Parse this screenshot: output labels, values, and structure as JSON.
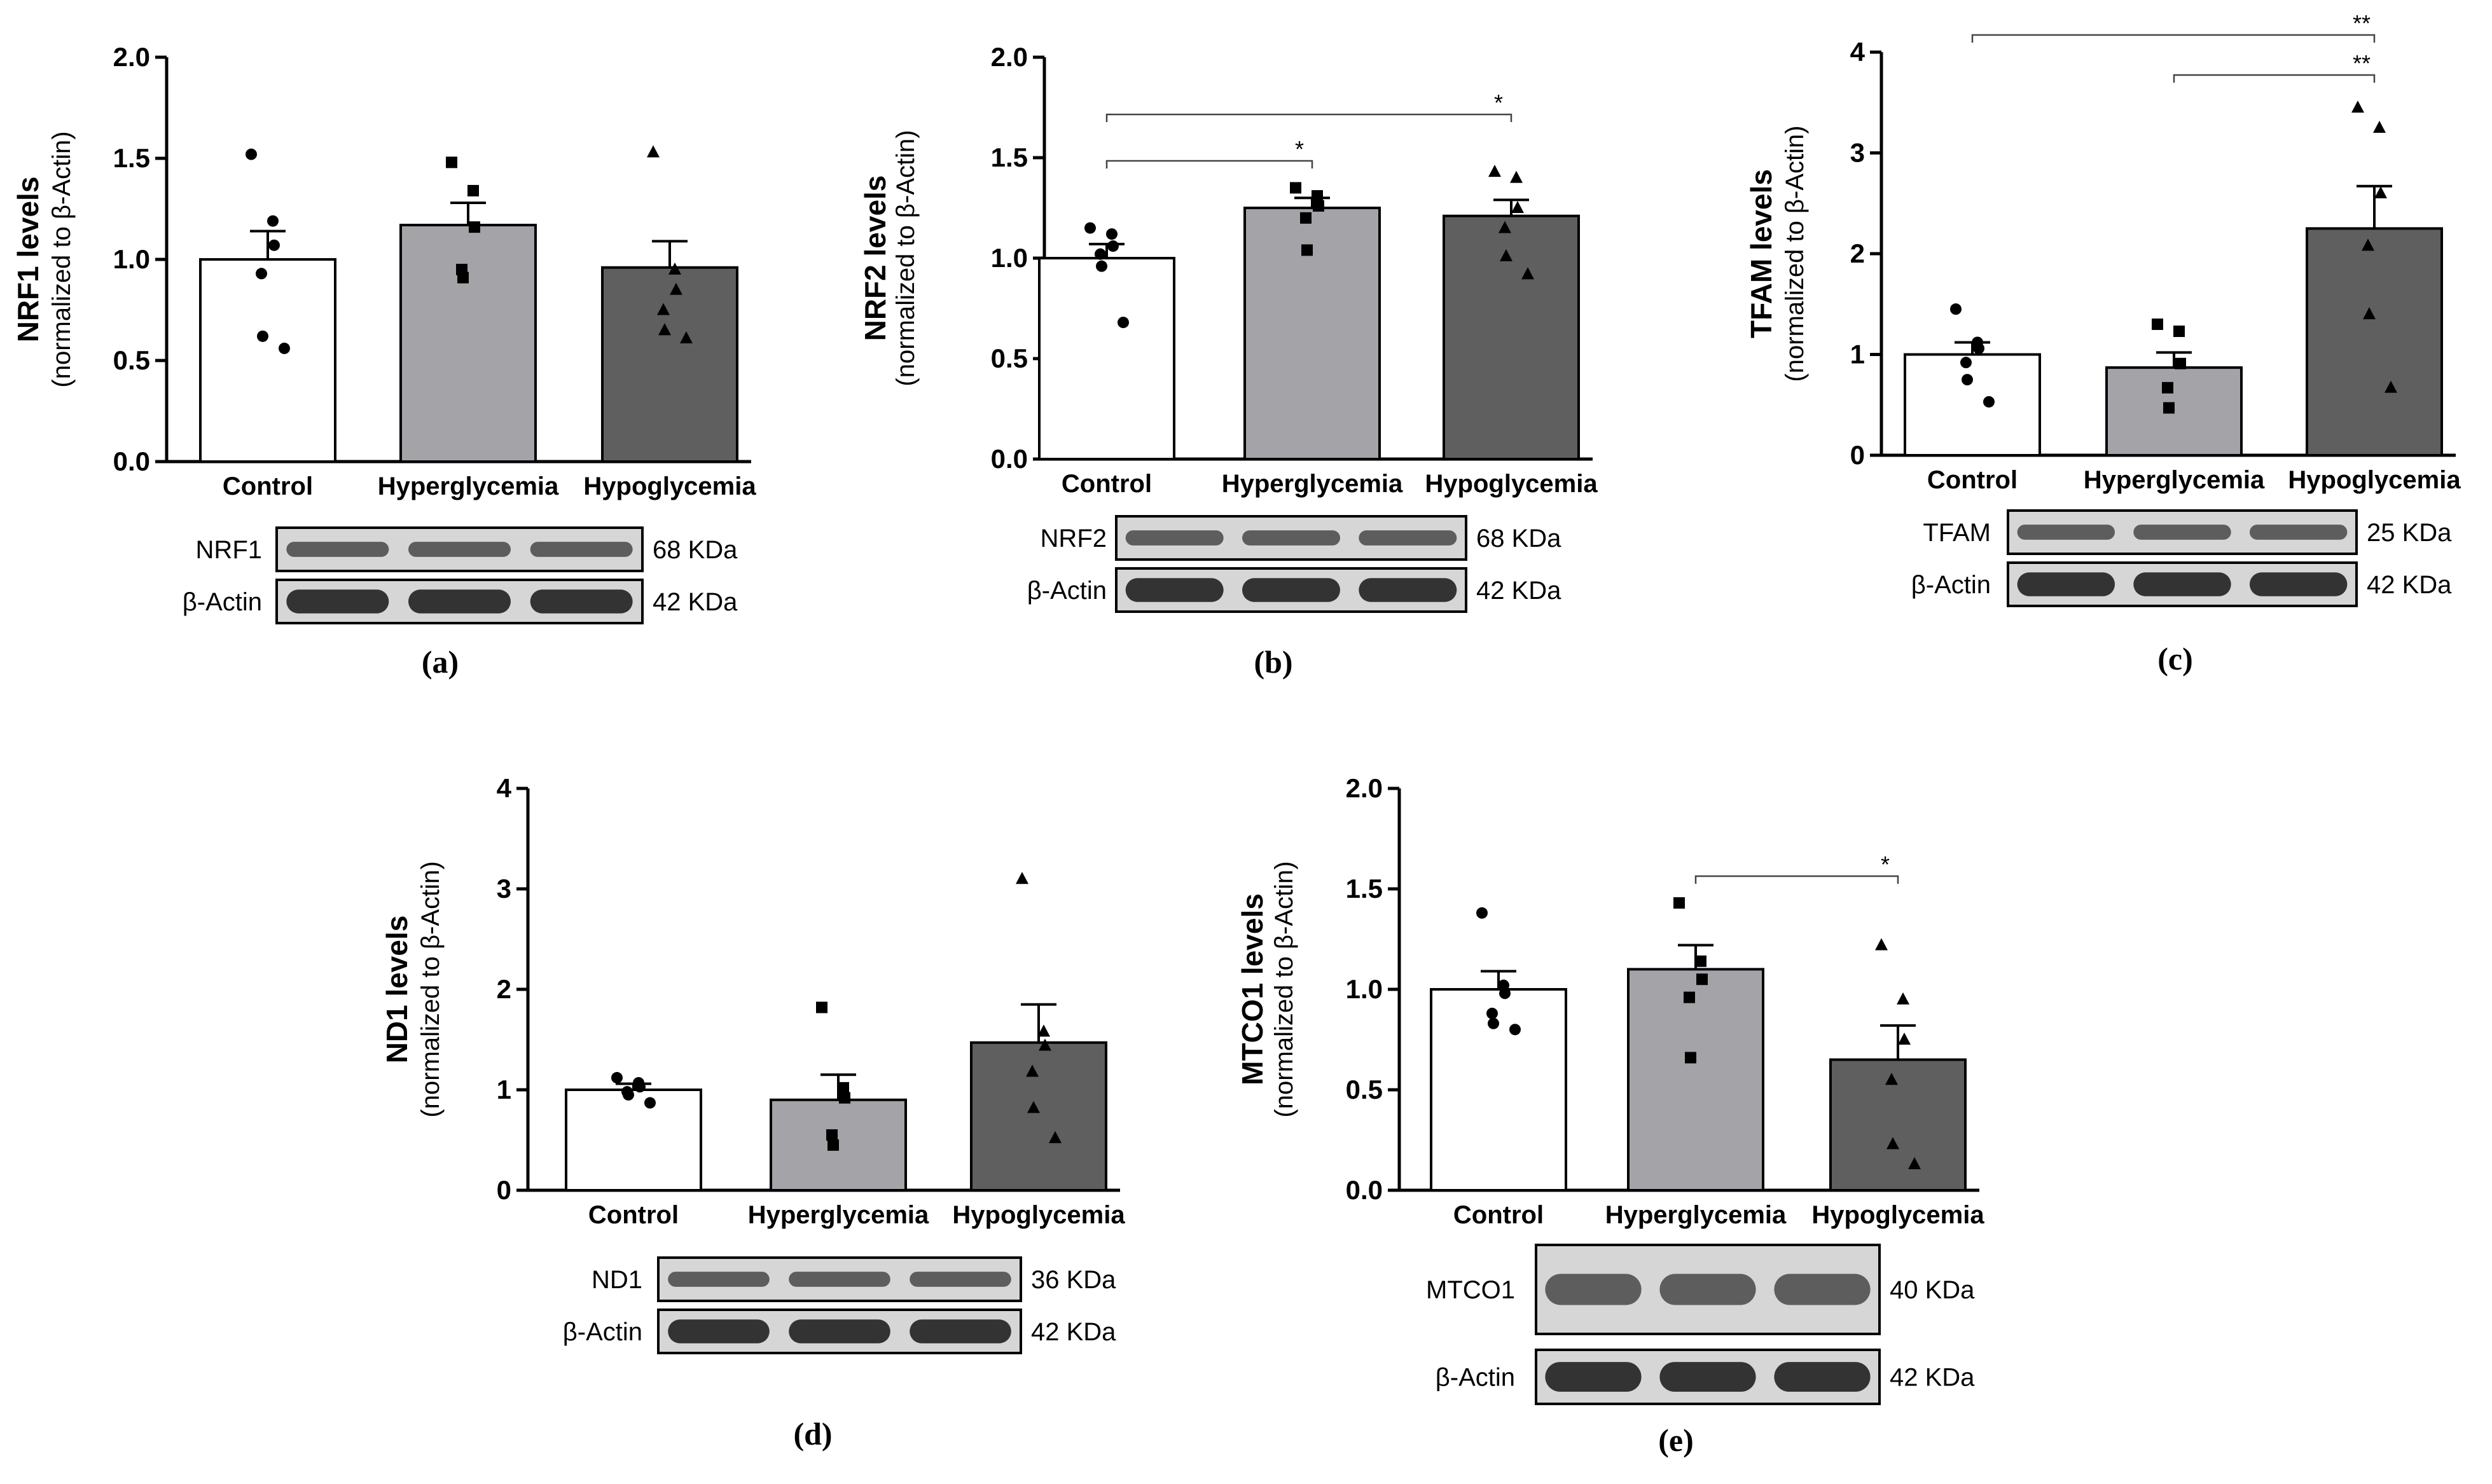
{
  "colors": {
    "control": "#ffffff",
    "hyperglycemia": "#a3a3a8",
    "hypoglycemia": "#5f5f5f",
    "axis": "#000000",
    "blot_bg": "#d6d6d6",
    "band": "#2a2a2a"
  },
  "panels": [
    {
      "id": "a",
      "caption": "(a)",
      "ylabel": "NRF1 levels",
      "ysub": "(normalized to β-Actin)",
      "blots": [
        {
          "label": "NRF1",
          "size": "68 KDa"
        },
        {
          "label": "β-Actin",
          "size": "42 KDa"
        }
      ],
      "significance": []
    },
    {
      "id": "b",
      "caption": "(b)",
      "ylabel": "NRF2 levels",
      "ysub": "(normalized to β-Actin)",
      "blots": [
        {
          "label": "NRF2",
          "size": "68 KDa"
        },
        {
          "label": "β-Actin",
          "size": "42 KDa"
        }
      ],
      "significance": [
        {
          "from": 0,
          "to": 1,
          "label": "*"
        },
        {
          "from": 0,
          "to": 2,
          "label": "*"
        }
      ]
    },
    {
      "id": "c",
      "caption": "(c)",
      "ylabel": "TFAM levels",
      "ysub": "(normalized to β-Actin)",
      "blots": [
        {
          "label": "TFAM",
          "size": "25 KDa"
        },
        {
          "label": "β-Actin",
          "size": "42 KDa"
        }
      ],
      "significance": [
        {
          "from": 0,
          "to": 2,
          "label": "**"
        },
        {
          "from": 1,
          "to": 2,
          "label": "**"
        }
      ]
    },
    {
      "id": "d",
      "caption": "(d)",
      "ylabel": "ND1 levels",
      "ysub": "(normalized to β-Actin)",
      "blots": [
        {
          "label": "ND1",
          "size": "36 KDa"
        },
        {
          "label": "β-Actin",
          "size": "42 KDa"
        }
      ],
      "significance": []
    },
    {
      "id": "e",
      "caption": "(e)",
      "ylabel": "MTCO1 levels",
      "ysub": "(normalized to β-Actin)",
      "blots": [
        {
          "label": "MTCO1",
          "size": "40 KDa"
        },
        {
          "label": "β-Actin",
          "size": "42 KDa"
        }
      ],
      "significance": [
        {
          "from": 1,
          "to": 2,
          "label": "*"
        }
      ]
    }
  ],
  "chart_data": [
    {
      "type": "bar",
      "panel": "a",
      "categories": [
        "Control",
        "Hyperglycemia",
        "Hypoglycemia"
      ],
      "values": [
        1.0,
        1.17,
        0.96
      ],
      "sem": [
        0.14,
        0.11,
        0.13
      ],
      "points": [
        [
          1.52,
          1.19,
          1.07,
          0.93,
          0.62,
          0.56
        ],
        [
          1.48,
          1.34,
          1.16,
          0.95,
          0.91
        ],
        [
          1.53,
          0.95,
          0.85,
          0.75,
          0.65,
          0.61
        ]
      ],
      "ylim": [
        0,
        2.0
      ],
      "yticks": [
        "0.0",
        "0.5",
        "1.0",
        "1.5",
        "2.0"
      ],
      "ylabel": "NRF1 levels"
    },
    {
      "type": "bar",
      "panel": "b",
      "categories": [
        "Control",
        "Hyperglycemia",
        "Hypoglycemia"
      ],
      "values": [
        1.0,
        1.25,
        1.21
      ],
      "sem": [
        0.07,
        0.05,
        0.08
      ],
      "points": [
        [
          1.15,
          1.12,
          1.06,
          1.02,
          0.96,
          0.68
        ],
        [
          1.35,
          1.31,
          1.26,
          1.2,
          1.04
        ],
        [
          1.43,
          1.4,
          1.25,
          1.15,
          1.01,
          0.92
        ]
      ],
      "ylim": [
        0,
        2.0
      ],
      "yticks": [
        "0.0",
        "0.5",
        "1.0",
        "1.5",
        "2.0"
      ],
      "ylabel": "NRF2 levels"
    },
    {
      "type": "bar",
      "panel": "c",
      "categories": [
        "Control",
        "Hyperglycemia",
        "Hypoglycemia"
      ],
      "values": [
        1.0,
        0.87,
        2.25
      ],
      "sem": [
        0.12,
        0.15,
        0.42
      ],
      "points": [
        [
          1.45,
          1.12,
          1.06,
          0.92,
          0.75,
          0.53
        ],
        [
          1.3,
          1.23,
          0.91,
          0.67,
          0.47
        ],
        [
          3.45,
          3.25,
          2.6,
          2.08,
          1.4,
          0.67
        ]
      ],
      "ylim": [
        0,
        4
      ],
      "yticks": [
        "0",
        "1",
        "2",
        "3",
        "4"
      ],
      "ylabel": "TFAM levels"
    },
    {
      "type": "bar",
      "panel": "d",
      "categories": [
        "Control",
        "Hyperglycemia",
        "Hypoglycemia"
      ],
      "values": [
        1.0,
        0.9,
        1.47
      ],
      "sem": [
        0.06,
        0.25,
        0.38
      ],
      "points": [
        [
          1.12,
          1.07,
          1.03,
          0.98,
          0.95,
          0.87
        ],
        [
          1.82,
          1.02,
          0.92,
          0.55,
          0.45
        ],
        [
          3.1,
          1.58,
          1.44,
          1.18,
          0.82,
          0.52
        ]
      ],
      "ylim": [
        0,
        4
      ],
      "yticks": [
        "0",
        "1",
        "2",
        "3",
        "4"
      ],
      "ylabel": "ND1 levels"
    },
    {
      "type": "bar",
      "panel": "e",
      "categories": [
        "Control",
        "Hyperglycemia",
        "Hypoglycemia"
      ],
      "values": [
        1.0,
        1.1,
        0.65
      ],
      "sem": [
        0.09,
        0.12,
        0.17
      ],
      "points": [
        [
          1.38,
          1.02,
          0.98,
          0.88,
          0.83,
          0.8
        ],
        [
          1.43,
          1.14,
          1.05,
          0.96,
          0.66
        ],
        [
          1.22,
          0.95,
          0.75,
          0.55,
          0.23,
          0.13
        ]
      ],
      "ylim": [
        0,
        2.0
      ],
      "yticks": [
        "0.0",
        "0.5",
        "1.0",
        "1.5",
        "2.0"
      ],
      "ylabel": "MTCO1 levels"
    }
  ]
}
